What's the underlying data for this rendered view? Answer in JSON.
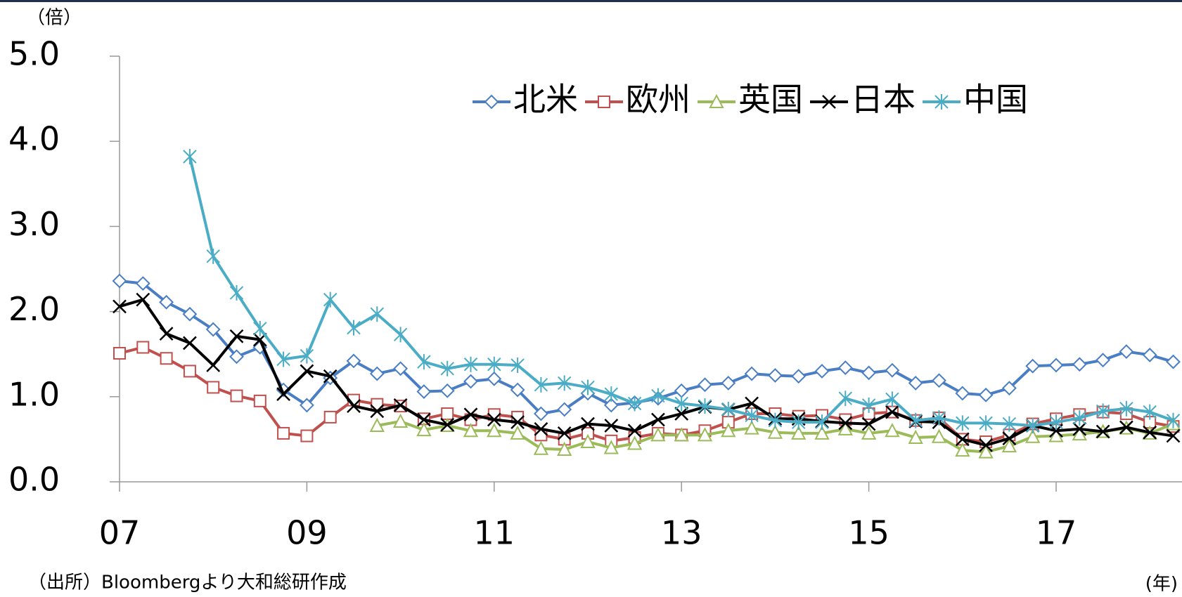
{
  "chart_data": {
    "type": "line",
    "unit_label": "（倍）",
    "x_unit_label": "(年)",
    "source": "（出所）Bloombergより大和総研作成",
    "categories": [
      "07",
      null,
      null,
      null,
      null,
      null,
      null,
      null,
      "09",
      null,
      null,
      null,
      null,
      null,
      null,
      null,
      "11",
      null,
      null,
      null,
      null,
      null,
      null,
      null,
      "13",
      null,
      null,
      null,
      null,
      null,
      null,
      null,
      "15",
      null,
      null,
      null,
      null,
      null,
      null,
      null,
      "17",
      null,
      null,
      null,
      null,
      null
    ],
    "ylim": [
      0,
      5
    ],
    "yticks": [
      {
        "value": 0,
        "label": "0.0"
      },
      {
        "value": 1,
        "label": "1.0"
      },
      {
        "value": 2,
        "label": "2.0"
      },
      {
        "value": 3,
        "label": "3.0"
      },
      {
        "value": 4,
        "label": "4.0"
      },
      {
        "value": 5,
        "label": "5.0"
      }
    ],
    "grid": false,
    "legend": "top",
    "series": [
      {
        "name": "北米",
        "color": "#4a7ec4",
        "marker": "diamond",
        "values": [
          2.36,
          2.33,
          2.11,
          1.97,
          1.79,
          1.47,
          1.58,
          1.08,
          0.9,
          1.22,
          1.42,
          1.27,
          1.33,
          1.06,
          1.07,
          1.18,
          1.21,
          1.08,
          0.8,
          0.85,
          1.04,
          0.9,
          0.93,
          0.98,
          1.07,
          1.14,
          1.16,
          1.27,
          1.25,
          1.24,
          1.3,
          1.34,
          1.28,
          1.31,
          1.16,
          1.19,
          1.04,
          1.02,
          1.1,
          1.36,
          1.37,
          1.38,
          1.43,
          1.53,
          1.49,
          1.41
        ]
      },
      {
        "name": "欧州",
        "color": "#c0504d",
        "marker": "square",
        "values": [
          1.51,
          1.58,
          1.45,
          1.3,
          1.11,
          1.01,
          0.95,
          0.57,
          0.54,
          0.76,
          0.96,
          0.91,
          0.89,
          0.74,
          0.8,
          0.73,
          0.79,
          0.76,
          0.55,
          0.5,
          0.57,
          0.48,
          0.52,
          0.57,
          0.55,
          0.6,
          0.7,
          0.8,
          0.8,
          0.77,
          0.78,
          0.73,
          0.8,
          0.82,
          0.72,
          0.75,
          0.5,
          0.47,
          0.55,
          0.68,
          0.74,
          0.79,
          0.82,
          0.8,
          0.7,
          0.65
        ]
      },
      {
        "name": "英国",
        "color": "#9bbb59",
        "marker": "triangle",
        "values": [
          null,
          null,
          null,
          null,
          null,
          null,
          null,
          null,
          null,
          null,
          null,
          0.66,
          0.71,
          0.61,
          0.66,
          0.6,
          0.6,
          0.57,
          0.39,
          0.38,
          0.47,
          0.4,
          0.45,
          0.55,
          0.55,
          0.55,
          0.6,
          0.63,
          0.58,
          0.57,
          0.57,
          0.62,
          0.57,
          0.6,
          0.52,
          0.53,
          0.37,
          0.35,
          0.42,
          0.53,
          0.54,
          0.56,
          0.59,
          0.63,
          0.57,
          0.68
        ]
      },
      {
        "name": "日本",
        "color": "#000000",
        "marker": "x",
        "values": [
          2.06,
          2.14,
          1.74,
          1.63,
          1.37,
          1.71,
          1.67,
          1.03,
          1.3,
          1.24,
          0.89,
          0.83,
          0.9,
          0.73,
          0.67,
          0.79,
          0.73,
          0.7,
          0.62,
          0.57,
          0.68,
          0.66,
          0.6,
          0.73,
          0.8,
          0.88,
          0.85,
          0.92,
          0.74,
          0.74,
          0.71,
          0.69,
          0.68,
          0.82,
          0.71,
          0.7,
          0.5,
          0.43,
          0.51,
          0.66,
          0.6,
          0.62,
          0.59,
          0.64,
          0.58,
          0.54
        ]
      },
      {
        "name": "中国",
        "color": "#4bacc6",
        "marker": "star",
        "values": [
          null,
          null,
          null,
          3.82,
          2.65,
          2.22,
          1.8,
          1.44,
          1.48,
          2.14,
          1.81,
          1.97,
          1.73,
          1.41,
          1.33,
          1.38,
          1.38,
          1.37,
          1.14,
          1.16,
          1.11,
          1.03,
          0.92,
          1.01,
          0.92,
          0.89,
          0.85,
          0.78,
          0.72,
          0.7,
          0.7,
          0.98,
          0.9,
          0.97,
          0.72,
          0.75,
          0.69,
          0.69,
          0.68,
          0.66,
          0.7,
          0.75,
          0.83,
          0.86,
          0.82,
          0.72
        ]
      }
    ]
  }
}
